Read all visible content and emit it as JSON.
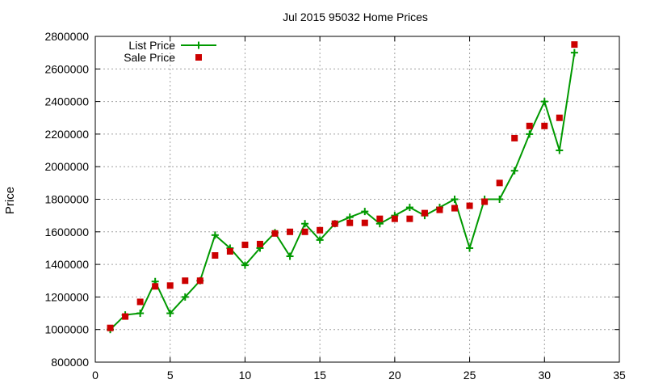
{
  "chart_data": {
    "type": "line",
    "title": "Jul 2015 95032 Home Prices",
    "xlabel": "",
    "ylabel": "Price",
    "xlim": [
      0,
      35
    ],
    "ylim": [
      800000,
      2800000
    ],
    "xticks": [
      0,
      5,
      10,
      15,
      20,
      25,
      30,
      35
    ],
    "yticks": [
      800000,
      1000000,
      1200000,
      1400000,
      1600000,
      1800000,
      2000000,
      2200000,
      2400000,
      2600000,
      2800000
    ],
    "grid": true,
    "legend_position": "top-left",
    "series": [
      {
        "name": "List Price",
        "style": "line-plus",
        "color": "#009900",
        "x": [
          1,
          2,
          3,
          4,
          5,
          6,
          7,
          8,
          9,
          10,
          11,
          12,
          13,
          14,
          15,
          16,
          17,
          18,
          19,
          20,
          21,
          22,
          23,
          24,
          25,
          26,
          27,
          28,
          29,
          30,
          31,
          32
        ],
        "values": [
          1000000,
          1090000,
          1100000,
          1295000,
          1100000,
          1200000,
          1300000,
          1580000,
          1500000,
          1395000,
          1500000,
          1595000,
          1450000,
          1650000,
          1550000,
          1650000,
          1690000,
          1725000,
          1650000,
          1700000,
          1750000,
          1700000,
          1750000,
          1800000,
          1500000,
          1800000,
          1800000,
          1975000,
          2200000,
          2400000,
          2100000,
          2700000
        ]
      },
      {
        "name": "Sale Price",
        "style": "square-marker",
        "color": "#cc0000",
        "x": [
          1,
          2,
          3,
          4,
          5,
          6,
          7,
          8,
          9,
          10,
          11,
          12,
          13,
          14,
          15,
          16,
          17,
          18,
          19,
          20,
          21,
          22,
          23,
          24,
          25,
          26,
          27,
          28,
          29,
          30,
          31,
          32
        ],
        "values": [
          1010000,
          1080000,
          1170000,
          1265000,
          1270000,
          1300000,
          1300000,
          1455000,
          1480000,
          1520000,
          1525000,
          1590000,
          1600000,
          1600000,
          1610000,
          1650000,
          1655000,
          1655000,
          1680000,
          1680000,
          1680000,
          1715000,
          1735000,
          1745000,
          1760000,
          1785000,
          1900000,
          2175000,
          2250000,
          2250000,
          2300000,
          2750000
        ]
      }
    ]
  }
}
